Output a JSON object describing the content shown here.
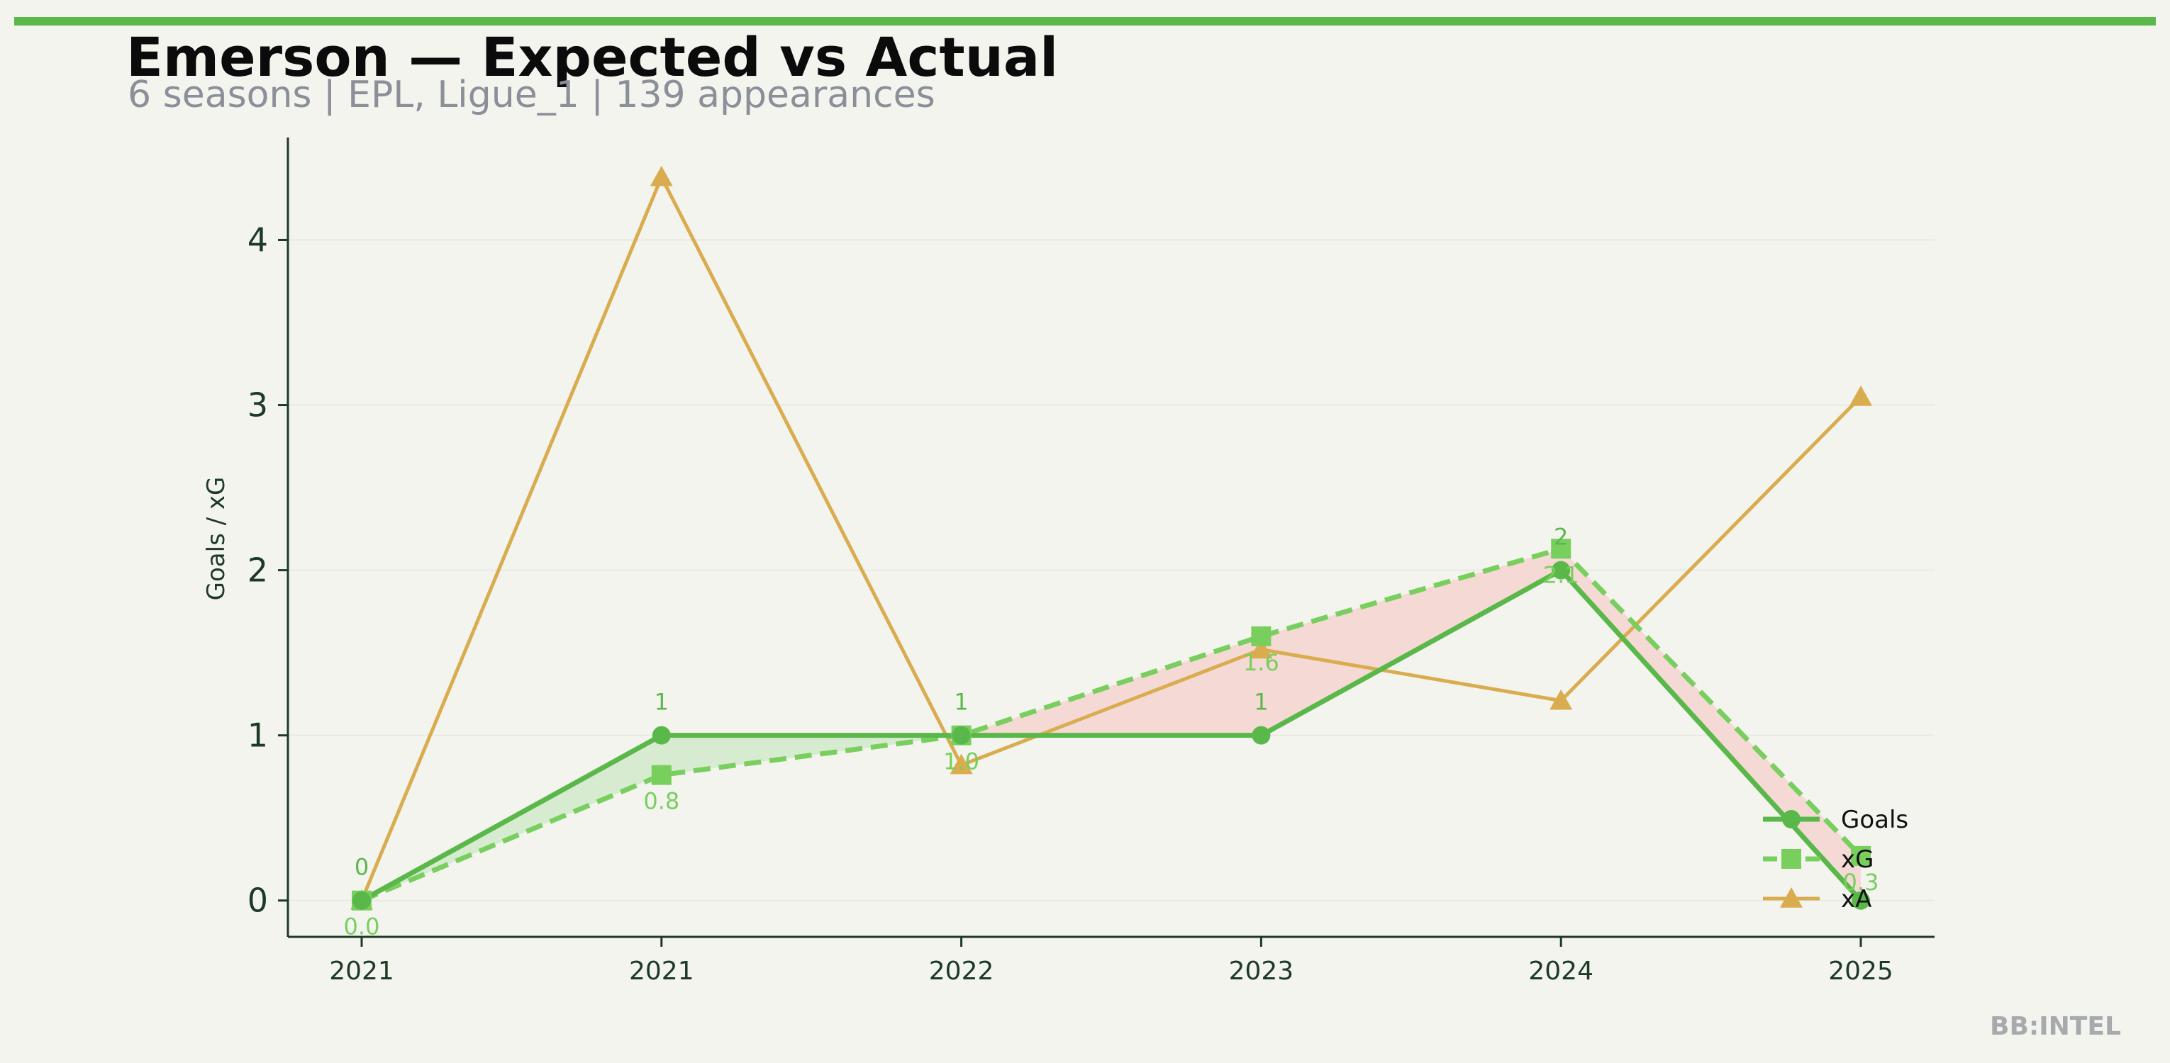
{
  "header": {
    "title": "Emerson — Expected vs Actual",
    "subtitle": "6 seasons | EPL, Ligue_1 | 139 appearances"
  },
  "watermark": "BB:INTEL",
  "colors": {
    "accent": "#5ab84a",
    "goals": "#5ab84a",
    "xg": "#78cf5e",
    "xa": "#d9ac4f",
    "overperform_fill": "#d6ebd0",
    "underperform_fill": "#f5d9d5",
    "axis": "#1d3a24",
    "background": "#f4f4ef"
  },
  "chart_data": {
    "type": "line",
    "title": "Emerson — Expected vs Actual",
    "subtitle": "6 seasons | EPL, Ligue_1 | 139 appearances",
    "xlabel": "",
    "ylabel": "Goals / xG",
    "categories": [
      "2021",
      "2021",
      "2022",
      "2023",
      "2024",
      "2025"
    ],
    "ylim": [
      -0.22,
      4.62
    ],
    "yticks": [
      0,
      1,
      2,
      3,
      4
    ],
    "grid": true,
    "legend_position": "lower-right",
    "series": [
      {
        "name": "Goals",
        "values": [
          0,
          1,
          1,
          1,
          2,
          0
        ],
        "labels": [
          "0",
          "1",
          "1",
          "1",
          "2",
          ""
        ],
        "marker": "circle",
        "style": "solid"
      },
      {
        "name": "xG",
        "values": [
          0.0,
          0.76,
          1.0,
          1.6,
          2.13,
          0.27
        ],
        "labels": [
          "0.0",
          "0.8",
          "1.0",
          "1.6",
          "2.1",
          "0.3"
        ],
        "marker": "square",
        "style": "dashed"
      },
      {
        "name": "xA",
        "values": [
          0.0,
          4.38,
          0.82,
          1.52,
          1.21,
          3.05
        ],
        "labels": [],
        "marker": "triangle",
        "style": "solid"
      }
    ]
  }
}
